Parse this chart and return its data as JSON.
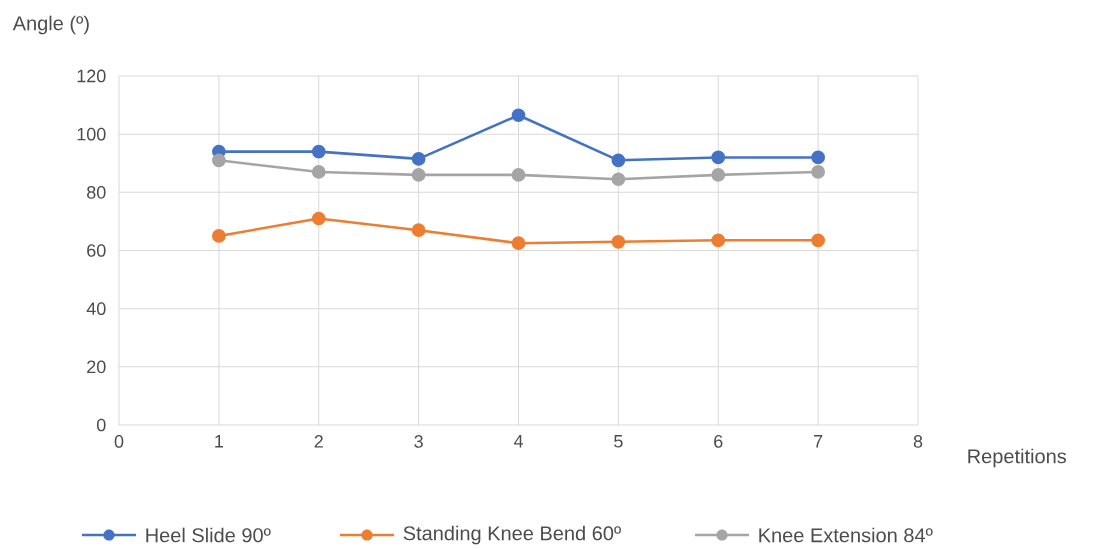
{
  "chart_data": {
    "type": "line",
    "ylabel": "Angle (º)",
    "xlabel": "Repetitions",
    "x": [
      1,
      2,
      3,
      4,
      5,
      6,
      7
    ],
    "series": [
      {
        "name": "Heel Slide 90º",
        "color": "#4472c4",
        "values": [
          94,
          94,
          91.5,
          106.5,
          91,
          92,
          92
        ]
      },
      {
        "name": "Standing Knee Bend 60º",
        "color": "#ed7d31",
        "values": [
          65,
          71,
          67,
          62.5,
          63,
          63.5,
          63.5
        ]
      },
      {
        "name": "Knee Extension 84º",
        "color": "#a5a5a5",
        "values": [
          91,
          87,
          86,
          86,
          84.5,
          86,
          87
        ]
      }
    ],
    "xlim": [
      0,
      8
    ],
    "xticks": [
      0,
      1,
      2,
      3,
      4,
      5,
      6,
      7,
      8
    ],
    "ylim": [
      0,
      120
    ],
    "yticks": [
      0,
      20,
      40,
      60,
      80,
      100,
      120
    ],
    "grid": true,
    "legend": "bottom",
    "marker": "circle",
    "line_style": "solid"
  }
}
